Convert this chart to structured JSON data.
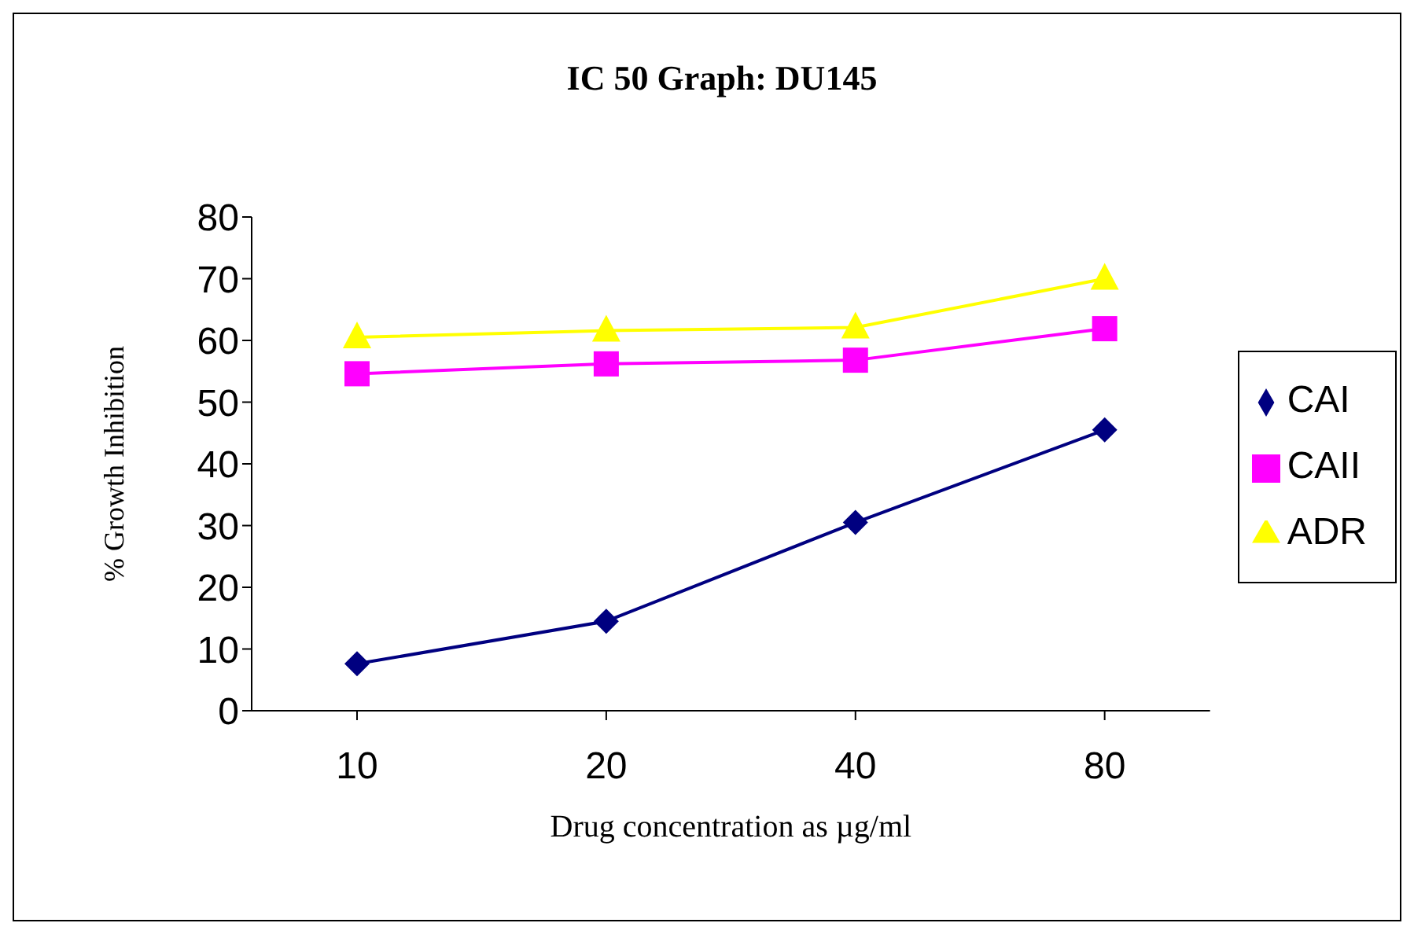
{
  "chart_data": {
    "type": "line",
    "title": "IC 50 Graph: DU145",
    "xlabel": "Drug concentration as µg/ml",
    "ylabel": "% Growth Inhibition",
    "categories": [
      "10",
      "20",
      "40",
      "80"
    ],
    "series": [
      {
        "name": "CAI",
        "color": "#000080",
        "marker": "diamond",
        "values": [
          7.6,
          14.5,
          30.5,
          45.5
        ]
      },
      {
        "name": "CAII",
        "color": "#ff00ff",
        "marker": "square",
        "values": [
          54.6,
          56.2,
          56.8,
          61.9
        ]
      },
      {
        "name": "ADR",
        "color": "#ffff00",
        "marker": "triangle",
        "values": [
          60.5,
          61.6,
          62.1,
          70
        ]
      }
    ],
    "ylim": [
      0,
      80
    ],
    "yticks": [
      0,
      10,
      20,
      30,
      40,
      50,
      60,
      70,
      80
    ],
    "grid": false,
    "legend": "right",
    "line_style": "solid"
  }
}
